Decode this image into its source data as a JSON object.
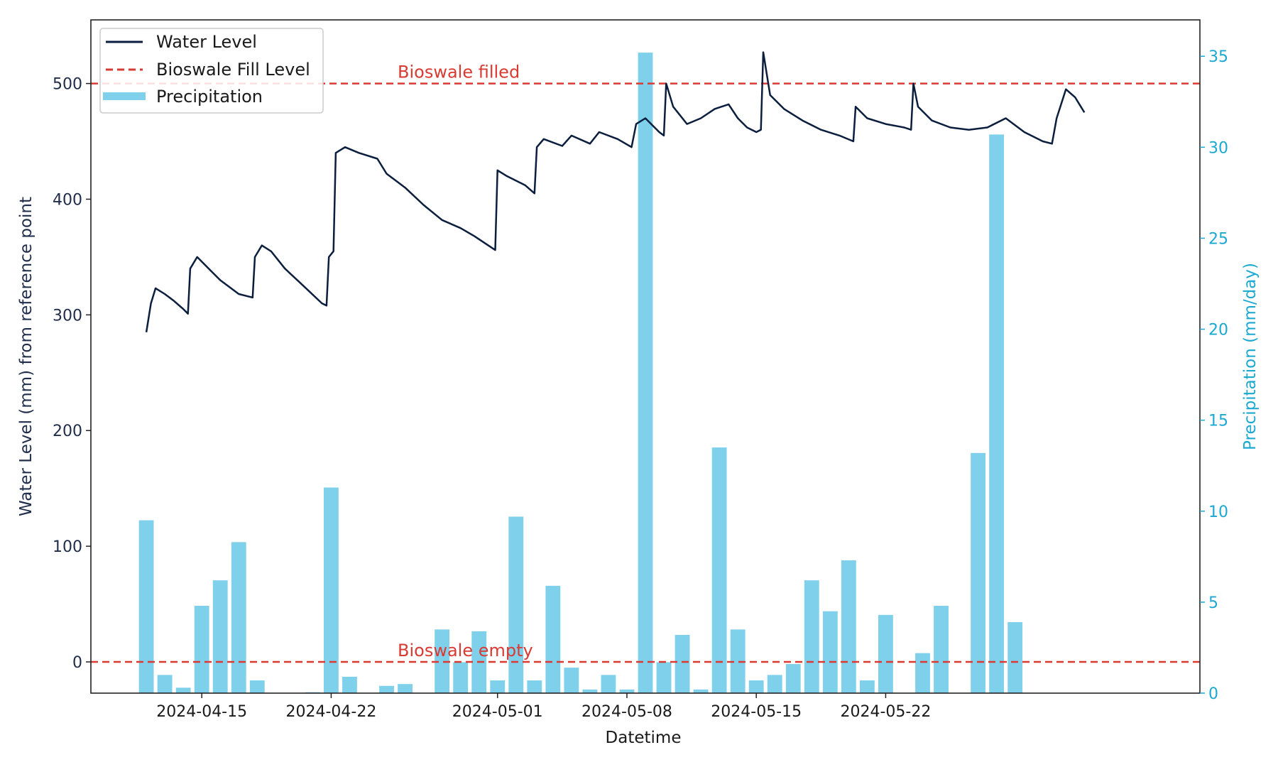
{
  "chart_data": {
    "type": "bar+line",
    "x_axis": {
      "label": "Datetime",
      "range": [
        "2024-04-09",
        "2024-06-08"
      ],
      "ticks": [
        "2024-04-15",
        "2024-04-22",
        "2024-05-01",
        "2024-05-08",
        "2024-05-15",
        "2024-05-22"
      ]
    },
    "y_left": {
      "label": "Water Level (mm) from reference point",
      "ylim": [
        -27,
        555
      ],
      "ticks": [
        0,
        100,
        200,
        300,
        400,
        500
      ],
      "color": "#1f2d4a"
    },
    "y_right": {
      "label": "Precipitation (mm/day)",
      "ylim": [
        0,
        37
      ],
      "ticks": [
        0,
        5,
        10,
        15,
        20,
        25,
        30,
        35
      ],
      "color": "#1ba8d1"
    },
    "legend": {
      "placement": "top-left",
      "entries": [
        {
          "label": "Water Level",
          "style": "line",
          "color": "#0b1e3d"
        },
        {
          "label": "Bioswale Fill Level",
          "style": "dashed",
          "color": "#d93a32"
        },
        {
          "label": "Precipitation",
          "style": "bar",
          "color": "#7fd0ea"
        }
      ]
    },
    "reference_lines": [
      {
        "value": 500,
        "label": "Bioswale filled",
        "color": "#d93a32"
      },
      {
        "value": 0,
        "label": "Bioswale empty",
        "color": "#d93a32"
      }
    ],
    "grid": false,
    "series": [
      {
        "name": "Precipitation",
        "type": "bar",
        "axis": "right",
        "color": "#7fd0ea",
        "x": [
          "2024-04-12",
          "2024-04-13",
          "2024-04-14",
          "2024-04-15",
          "2024-04-16",
          "2024-04-17",
          "2024-04-18",
          "2024-04-21",
          "2024-04-22",
          "2024-04-23",
          "2024-04-25",
          "2024-04-26",
          "2024-04-28",
          "2024-04-29",
          "2024-04-30",
          "2024-05-01",
          "2024-05-02",
          "2024-05-03",
          "2024-05-04",
          "2024-05-05",
          "2024-05-06",
          "2024-05-07",
          "2024-05-08",
          "2024-05-09",
          "2024-05-10",
          "2024-05-11",
          "2024-05-12",
          "2024-05-13",
          "2024-05-14",
          "2024-05-15",
          "2024-05-16",
          "2024-05-17",
          "2024-05-18",
          "2024-05-19",
          "2024-05-20",
          "2024-05-21",
          "2024-05-22",
          "2024-05-24",
          "2024-05-25",
          "2024-05-27",
          "2024-05-28",
          "2024-05-29"
        ],
        "values": [
          9.5,
          1.0,
          0.3,
          4.8,
          6.2,
          8.3,
          0.7,
          0.05,
          11.3,
          0.9,
          0.4,
          0.5,
          3.5,
          1.7,
          3.4,
          0.7,
          9.7,
          0.7,
          5.9,
          1.4,
          0.2,
          1.0,
          0.2,
          35.2,
          1.7,
          3.2,
          0.2,
          13.5,
          3.5,
          0.7,
          1.0,
          1.6,
          6.2,
          4.5,
          7.3,
          0.7,
          4.3,
          2.2,
          4.8,
          13.2,
          30.7,
          3.9
        ]
      },
      {
        "name": "Water Level",
        "type": "line",
        "axis": "left",
        "color": "#0b1e3d",
        "points": [
          [
            "2024-04-12 00:00",
            285
          ],
          [
            "2024-04-12 06:00",
            310
          ],
          [
            "2024-04-12 12:00",
            323
          ],
          [
            "2024-04-13 00:00",
            318
          ],
          [
            "2024-04-13 12:00",
            312
          ],
          [
            "2024-04-14 00:00",
            305
          ],
          [
            "2024-04-14 06:00",
            301
          ],
          [
            "2024-04-14 09:00",
            340
          ],
          [
            "2024-04-14 18:00",
            350
          ],
          [
            "2024-04-15 12:00",
            338
          ],
          [
            "2024-04-16 00:00",
            330
          ],
          [
            "2024-04-17 00:00",
            318
          ],
          [
            "2024-04-17 18:00",
            315
          ],
          [
            "2024-04-17 21:00",
            350
          ],
          [
            "2024-04-18 06:00",
            360
          ],
          [
            "2024-04-18 18:00",
            355
          ],
          [
            "2024-04-19 12:00",
            340
          ],
          [
            "2024-04-20 12:00",
            325
          ],
          [
            "2024-04-21 12:00",
            310
          ],
          [
            "2024-04-21 18:00",
            308
          ],
          [
            "2024-04-21 21:00",
            350
          ],
          [
            "2024-04-22 03:00",
            355
          ],
          [
            "2024-04-22 06:00",
            440
          ],
          [
            "2024-04-22 18:00",
            445
          ],
          [
            "2024-04-23 12:00",
            440
          ],
          [
            "2024-04-24 12:00",
            435
          ],
          [
            "2024-04-25 00:00",
            422
          ],
          [
            "2024-04-26 00:00",
            410
          ],
          [
            "2024-04-27 00:00",
            395
          ],
          [
            "2024-04-28 00:00",
            382
          ],
          [
            "2024-04-29 00:00",
            375
          ],
          [
            "2024-04-29 18:00",
            368
          ],
          [
            "2024-04-30 12:00",
            360
          ],
          [
            "2024-04-30 21:00",
            356
          ],
          [
            "2024-05-01 00:00",
            425
          ],
          [
            "2024-05-01 12:00",
            420
          ],
          [
            "2024-05-02 12:00",
            412
          ],
          [
            "2024-05-03 00:00",
            405
          ],
          [
            "2024-05-03 03:00",
            445
          ],
          [
            "2024-05-03 12:00",
            452
          ],
          [
            "2024-05-04 12:00",
            446
          ],
          [
            "2024-05-05 00:00",
            455
          ],
          [
            "2024-05-06 00:00",
            448
          ],
          [
            "2024-05-06 12:00",
            458
          ],
          [
            "2024-05-07 12:00",
            452
          ],
          [
            "2024-05-08 06:00",
            445
          ],
          [
            "2024-05-08 12:00",
            465
          ],
          [
            "2024-05-09 00:00",
            470
          ],
          [
            "2024-05-09 18:00",
            458
          ],
          [
            "2024-05-10 00:00",
            455
          ],
          [
            "2024-05-10 03:00",
            500
          ],
          [
            "2024-05-10 12:00",
            480
          ],
          [
            "2024-05-11 06:00",
            465
          ],
          [
            "2024-05-12 00:00",
            470
          ],
          [
            "2024-05-12 18:00",
            478
          ],
          [
            "2024-05-13 12:00",
            482
          ],
          [
            "2024-05-14 00:00",
            470
          ],
          [
            "2024-05-14 12:00",
            462
          ],
          [
            "2024-05-15 00:00",
            458
          ],
          [
            "2024-05-15 06:00",
            460
          ],
          [
            "2024-05-15 09:00",
            527
          ],
          [
            "2024-05-15 18:00",
            490
          ],
          [
            "2024-05-16 12:00",
            478
          ],
          [
            "2024-05-17 12:00",
            468
          ],
          [
            "2024-05-18 12:00",
            460
          ],
          [
            "2024-05-19 12:00",
            455
          ],
          [
            "2024-05-20 06:00",
            450
          ],
          [
            "2024-05-20 09:00",
            480
          ],
          [
            "2024-05-21 00:00",
            470
          ],
          [
            "2024-05-22 00:00",
            465
          ],
          [
            "2024-05-23 00:00",
            462
          ],
          [
            "2024-05-23 09:00",
            460
          ],
          [
            "2024-05-23 12:00",
            500
          ],
          [
            "2024-05-23 18:00",
            480
          ],
          [
            "2024-05-24 12:00",
            468
          ],
          [
            "2024-05-25 12:00",
            462
          ],
          [
            "2024-05-26 12:00",
            460
          ],
          [
            "2024-05-27 12:00",
            462
          ],
          [
            "2024-05-28 12:00",
            470
          ],
          [
            "2024-05-29 12:00",
            458
          ],
          [
            "2024-05-30 12:00",
            450
          ],
          [
            "2024-05-31 00:00",
            448
          ],
          [
            "2024-05-31 06:00",
            470
          ],
          [
            "2024-05-31 18:00",
            495
          ],
          [
            "2024-06-01 06:00",
            488
          ],
          [
            "2024-06-01 18:00",
            475
          ]
        ]
      }
    ]
  }
}
